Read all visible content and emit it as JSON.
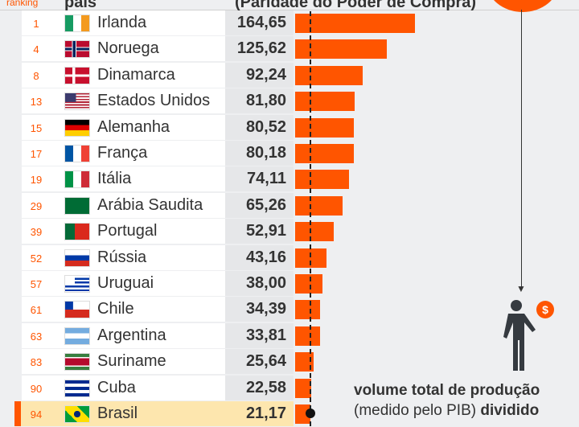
{
  "header": {
    "rank": "ranking",
    "country": "país",
    "unit": "(Paridade do Poder de Compra)"
  },
  "colors": {
    "bar": "#ff5500",
    "highlight": "#fde6ae",
    "background": "#eeeff1"
  },
  "chart_data": {
    "type": "bar",
    "orientation": "horizontal",
    "categories": [
      "Irlanda",
      "Noruega",
      "Dinamarca",
      "Estados Unidos",
      "Alemanha",
      "França",
      "Itália",
      "Arábia Saudita",
      "Portugal",
      "Rússia",
      "Uruguai",
      "Chile",
      "Argentina",
      "Suriname",
      "Cuba",
      "Brasil"
    ],
    "ranks": [
      "1",
      "4",
      "8",
      "13",
      "15",
      "17",
      "19",
      "29",
      "39",
      "52",
      "57",
      "61",
      "63",
      "83",
      "90",
      "94"
    ],
    "labels": [
      "164,65",
      "125,62",
      "92,24",
      "81,80",
      "80,52",
      "80,18",
      "74,11",
      "65,26",
      "52,91",
      "43,16",
      "38,00",
      "34,39",
      "33,81",
      "25,64",
      "22,58",
      "21,17"
    ],
    "values": [
      164.65,
      125.62,
      92.24,
      81.8,
      80.52,
      80.18,
      74.11,
      65.26,
      52.91,
      43.16,
      38.0,
      34.39,
      33.81,
      25.64,
      22.58,
      21.17
    ],
    "flags": [
      "f-ie",
      "f-no",
      "f-dk",
      "f-us",
      "f-de",
      "f-fr",
      "f-it",
      "f-sa",
      "f-pt",
      "f-ru",
      "f-uy",
      "f-cl",
      "f-ar",
      "f-sr",
      "f-cu",
      "f-br"
    ],
    "highlight": "Brasil",
    "reference_line": 21.17
  },
  "note": {
    "bold1": "volume total de produção",
    "normal": "(medido pelo PIB)",
    "bold2": "dividido"
  }
}
